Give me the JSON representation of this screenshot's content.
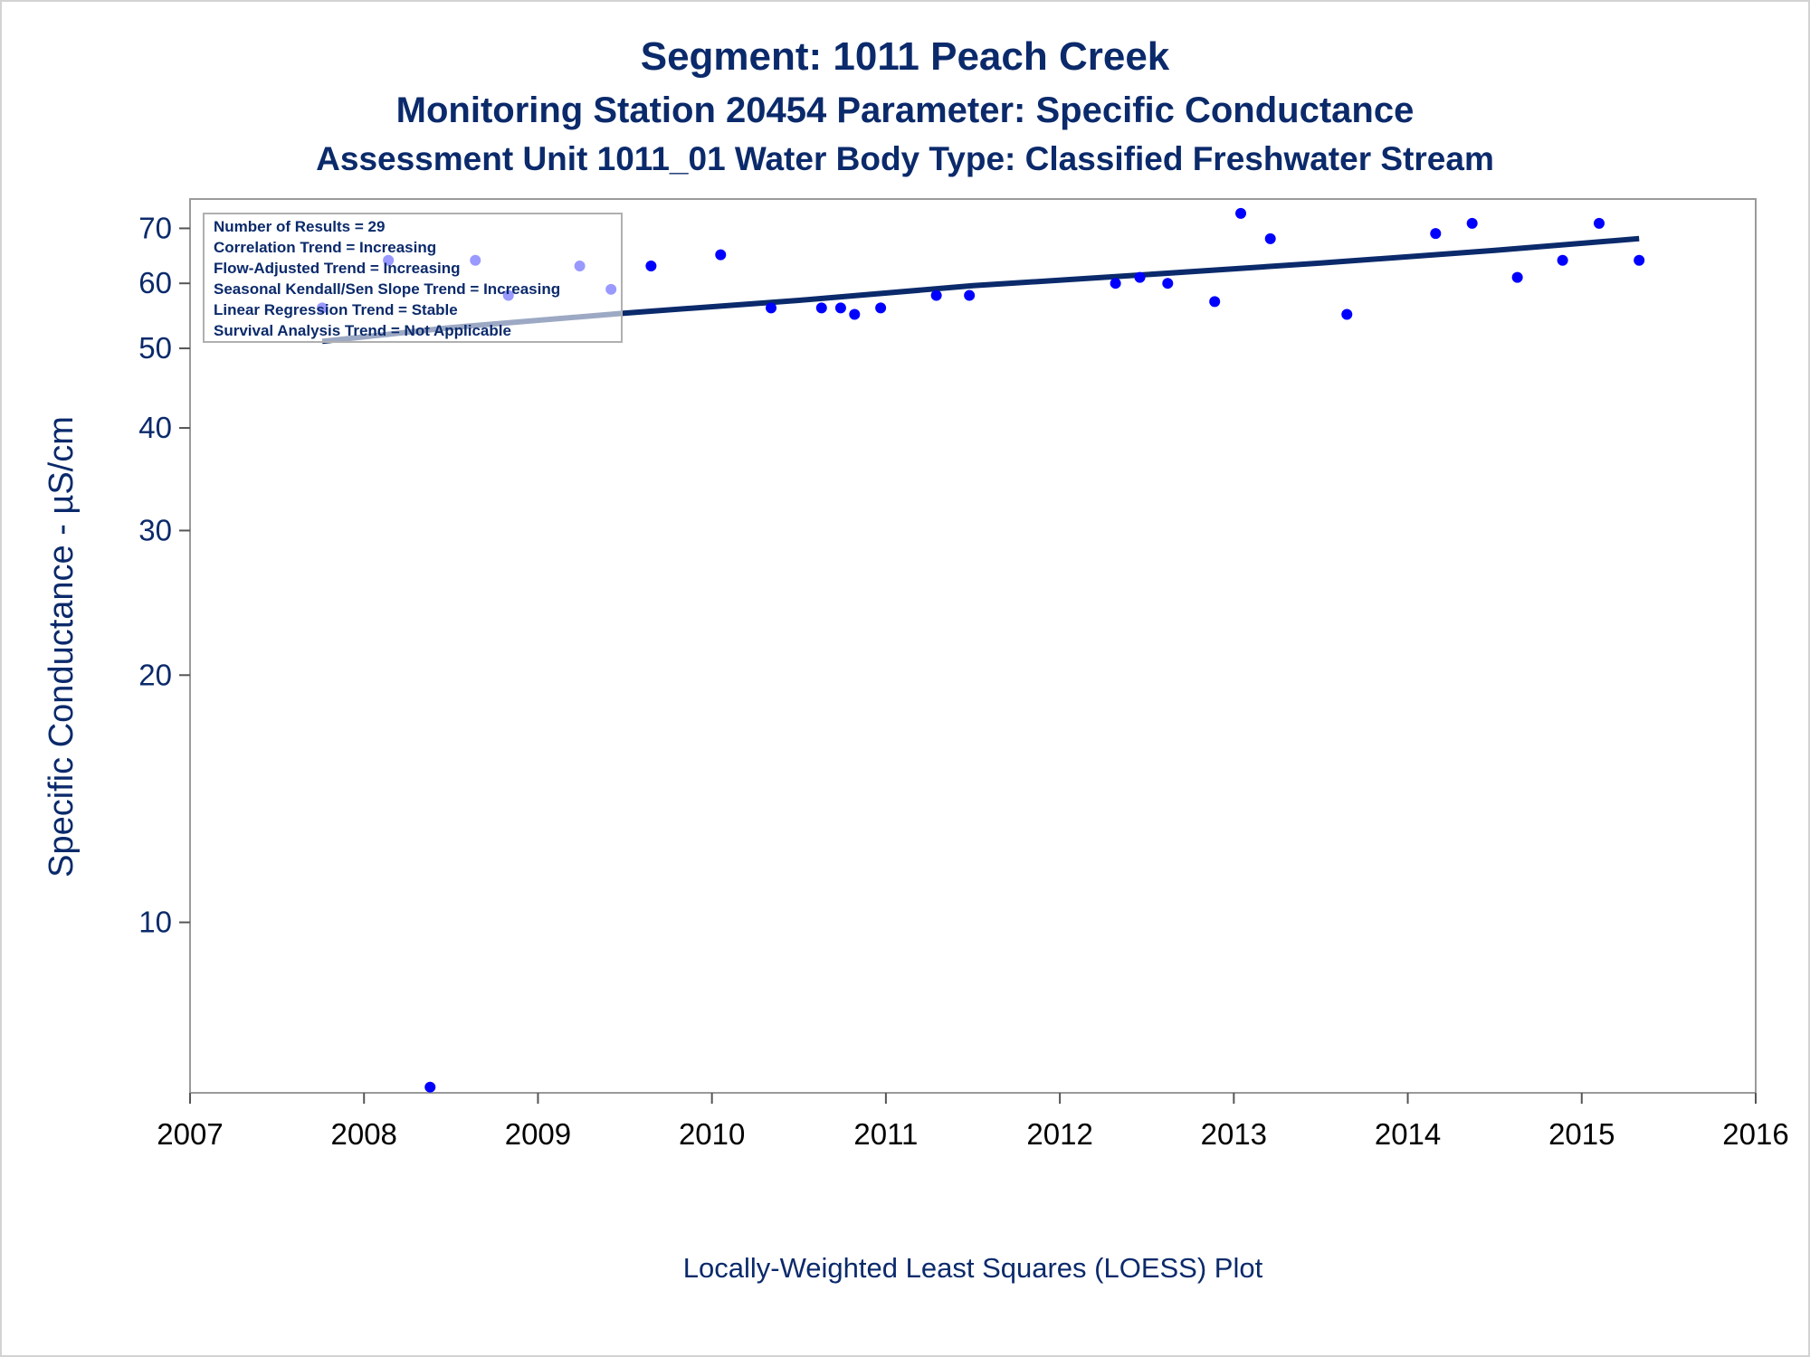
{
  "titles": {
    "line1": "Segment: 1011  Peach Creek",
    "line2": "Monitoring Station 20454 Parameter: Specific Conductance",
    "line3": "Assessment Unit 1011_01   Water Body Type: Classified Freshwater Stream"
  },
  "footnote": "Locally-Weighted Least Squares (LOESS) Plot",
  "stats_box": [
    "Number of Results = 29",
    "Correlation Trend = Increasing",
    "Flow-Adjusted Trend = Increasing",
    "Seasonal Kendall/Sen Slope Trend = Increasing",
    "Linear Regression Trend = Stable",
    "Survival Analysis Trend = Not Applicable"
  ],
  "colors": {
    "title": "#0b2a6b",
    "points": "#0000ff",
    "trend_line": "#0b2a6b",
    "frame": "#9a9a9a"
  },
  "chart_data": {
    "type": "scatter",
    "ylabel": "Specific Conductance -  µS/cm",
    "xlabel": "",
    "y_scale": "log",
    "xlim": [
      2007,
      2016
    ],
    "ylim": [
      6.2,
      76
    ],
    "x_ticks": [
      2007,
      2008,
      2009,
      2010,
      2011,
      2012,
      2013,
      2014,
      2015,
      2016
    ],
    "y_ticks": [
      10,
      20,
      30,
      40,
      50,
      60,
      70
    ],
    "grid": false,
    "series": [
      {
        "type": "scatter",
        "points": [
          {
            "x": 2007.76,
            "y": 56
          },
          {
            "x": 2008.14,
            "y": 64
          },
          {
            "x": 2008.38,
            "y": 6.3
          },
          {
            "x": 2008.64,
            "y": 64
          },
          {
            "x": 2008.83,
            "y": 58
          },
          {
            "x": 2009.24,
            "y": 63
          },
          {
            "x": 2009.42,
            "y": 59
          },
          {
            "x": 2009.65,
            "y": 63
          },
          {
            "x": 2010.05,
            "y": 65
          },
          {
            "x": 2010.34,
            "y": 56
          },
          {
            "x": 2010.63,
            "y": 56
          },
          {
            "x": 2010.74,
            "y": 56
          },
          {
            "x": 2010.82,
            "y": 55
          },
          {
            "x": 2010.97,
            "y": 56
          },
          {
            "x": 2011.29,
            "y": 58
          },
          {
            "x": 2011.48,
            "y": 58
          },
          {
            "x": 2012.32,
            "y": 60
          },
          {
            "x": 2012.46,
            "y": 61
          },
          {
            "x": 2012.62,
            "y": 60
          },
          {
            "x": 2012.89,
            "y": 57
          },
          {
            "x": 2013.04,
            "y": 73
          },
          {
            "x": 2013.21,
            "y": 68
          },
          {
            "x": 2013.65,
            "y": 55
          },
          {
            "x": 2014.16,
            "y": 69
          },
          {
            "x": 2014.37,
            "y": 71
          },
          {
            "x": 2014.63,
            "y": 61
          },
          {
            "x": 2014.89,
            "y": 64
          },
          {
            "x": 2015.1,
            "y": 71
          },
          {
            "x": 2015.33,
            "y": 64
          }
        ]
      },
      {
        "type": "line",
        "points": [
          {
            "x": 2007.76,
            "y": 51
          },
          {
            "x": 2008.5,
            "y": 53
          },
          {
            "x": 2009.5,
            "y": 55.2
          },
          {
            "x": 2010.5,
            "y": 57.2
          },
          {
            "x": 2011.5,
            "y": 59.6
          },
          {
            "x": 2012.5,
            "y": 61.5
          },
          {
            "x": 2013.5,
            "y": 63.5
          },
          {
            "x": 2014.5,
            "y": 65.8
          },
          {
            "x": 2015.33,
            "y": 68
          }
        ]
      }
    ]
  }
}
